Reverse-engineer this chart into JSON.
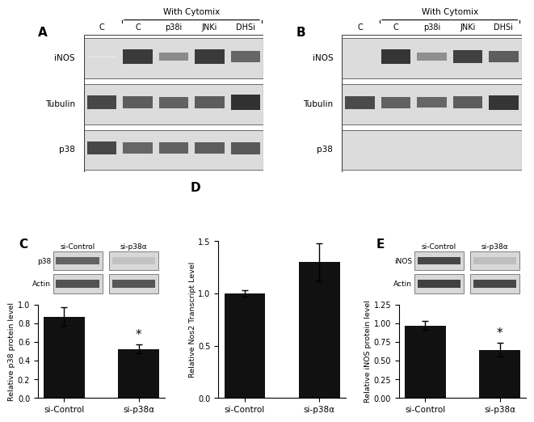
{
  "panel_labels": [
    "A",
    "B",
    "C",
    "D",
    "E"
  ],
  "cytomix_label": "With Cytomix",
  "col_labels_AB": [
    "C",
    "C",
    "p38i",
    "JNKi",
    "DHSi"
  ],
  "row_labels_A": [
    "iNOS",
    "Tubulin",
    "p38"
  ],
  "row_labels_B": [
    "iNOS",
    "Tubulin",
    "p38"
  ],
  "inos_A": [
    0.12,
    0.88,
    0.52,
    0.88,
    0.68
  ],
  "tubulin_A": [
    0.82,
    0.72,
    0.7,
    0.72,
    0.92
  ],
  "p38_A": [
    0.82,
    0.68,
    0.7,
    0.72,
    0.74
  ],
  "inos_B": [
    0.15,
    0.9,
    0.5,
    0.85,
    0.72
  ],
  "tubulin_B": [
    0.8,
    0.7,
    0.68,
    0.72,
    0.9
  ],
  "p38_B": [
    0.0,
    0.0,
    0.0,
    0.0,
    0.0
  ],
  "panel_C": {
    "blot_labels": [
      "p38",
      "Actin"
    ],
    "group_labels": [
      "si-Control",
      "si-p38α"
    ],
    "bar_values": [
      0.87,
      0.525
    ],
    "bar_errors": [
      0.1,
      0.05
    ],
    "ylim": [
      0.0,
      1.0
    ],
    "yticks": [
      0.0,
      0.2,
      0.4,
      0.6,
      0.8,
      1.0
    ],
    "ylabel": "Relative p38 protein level",
    "star": "*",
    "star_bar_idx": 1
  },
  "panel_D": {
    "group_labels": [
      "si-Control",
      "si-p38α"
    ],
    "bar_values": [
      1.0,
      1.3
    ],
    "bar_errors": [
      0.03,
      0.18
    ],
    "ylim": [
      0.0,
      1.5
    ],
    "yticks": [
      0.0,
      0.5,
      1.0,
      1.5
    ],
    "ylabel": "Relative Nos2 Transcript Level"
  },
  "panel_E": {
    "blot_labels": [
      "iNOS",
      "Actin"
    ],
    "group_labels": [
      "si-Control",
      "si-p38α"
    ],
    "bar_values": [
      0.97,
      0.645
    ],
    "bar_errors": [
      0.06,
      0.09
    ],
    "ylim": [
      0.0,
      1.25
    ],
    "yticks": [
      0.0,
      0.25,
      0.5,
      0.75,
      1.0,
      1.25
    ],
    "ylabel": "Relative iNOS protein level",
    "star": "*",
    "star_bar_idx": 1
  },
  "bar_color": "#111111",
  "background_color": "#ffffff",
  "fig_width": 6.5,
  "fig_height": 5.21
}
